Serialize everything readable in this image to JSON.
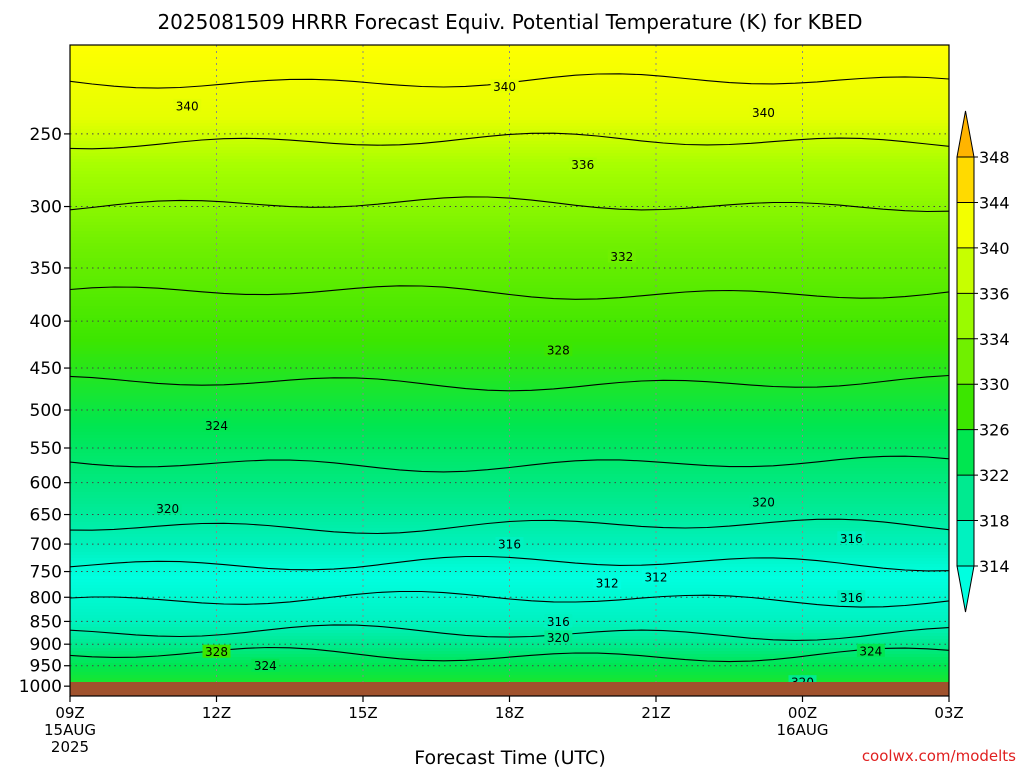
{
  "chart_data": {
    "type": "heatmap",
    "title": "2025081509 HRRR Forecast Equiv. Potential Temperature (K) for KBED",
    "xlabel": "Forecast Time (UTC)",
    "ylabel": "",
    "credit": "coolwx.com/modelts",
    "x_ticks": [
      {
        "hour": 0,
        "label": "09Z",
        "sub1": "15AUG",
        "sub2": "2025"
      },
      {
        "hour": 3,
        "label": "12Z",
        "sub1": "",
        "sub2": ""
      },
      {
        "hour": 6,
        "label": "15Z",
        "sub1": "",
        "sub2": ""
      },
      {
        "hour": 9,
        "label": "18Z",
        "sub1": "",
        "sub2": ""
      },
      {
        "hour": 12,
        "label": "21Z",
        "sub1": "",
        "sub2": ""
      },
      {
        "hour": 15,
        "label": "00Z",
        "sub1": "16AUG",
        "sub2": ""
      },
      {
        "hour": 18,
        "label": "03Z",
        "sub1": "",
        "sub2": ""
      }
    ],
    "y_ticks": [
      250,
      300,
      350,
      400,
      450,
      500,
      550,
      600,
      650,
      700,
      750,
      800,
      850,
      900,
      950,
      1000
    ],
    "y_axis": {
      "unit": "hPa",
      "scale": "log",
      "top": 200,
      "bottom": 1025
    },
    "colorbar": {
      "labels": [
        348,
        344,
        340,
        336,
        334,
        330,
        326,
        322,
        318,
        314
      ],
      "extend": "both"
    },
    "color_ramp": [
      {
        "v": 312,
        "c": "#00ffe0"
      },
      {
        "v": 316,
        "c": "#00f2c0"
      },
      {
        "v": 320,
        "c": "#00ea90"
      },
      {
        "v": 324,
        "c": "#00e650"
      },
      {
        "v": 328,
        "c": "#3ce600"
      },
      {
        "v": 332,
        "c": "#70f000"
      },
      {
        "v": 336,
        "c": "#a8ff00"
      },
      {
        "v": 340,
        "c": "#e6ff00"
      },
      {
        "v": 344,
        "c": "#ffff00"
      },
      {
        "v": 348,
        "c": "#ffb400"
      }
    ],
    "ground_color": "#a0522d",
    "contour_interval": 2,
    "profile": [
      {
        "p": 200,
        "theta_e": 344
      },
      {
        "p": 240,
        "theta_e": 340
      },
      {
        "p": 270,
        "theta_e": 336
      },
      {
        "p": 330,
        "theta_e": 332
      },
      {
        "p": 420,
        "theta_e": 328
      },
      {
        "p": 520,
        "theta_e": 324
      },
      {
        "p": 630,
        "theta_e": 320
      },
      {
        "p": 710,
        "theta_e": 316
      },
      {
        "p": 760,
        "theta_e": 312
      },
      {
        "p": 850,
        "theta_e": 316
      },
      {
        "p": 900,
        "theta_e": 320
      },
      {
        "p": 950,
        "theta_e": 324
      },
      {
        "p": 1000,
        "theta_e": 326
      }
    ],
    "contour_labels": [
      {
        "hour": 2.4,
        "p": 233,
        "text": "340"
      },
      {
        "hour": 8.9,
        "p": 222,
        "text": "340"
      },
      {
        "hour": 14.2,
        "p": 237,
        "text": "340"
      },
      {
        "hour": 10.5,
        "p": 270,
        "text": "336"
      },
      {
        "hour": 11.3,
        "p": 340,
        "text": "332"
      },
      {
        "hour": 10.0,
        "p": 430,
        "text": "328"
      },
      {
        "hour": 3.0,
        "p": 520,
        "text": "324"
      },
      {
        "hour": 2.0,
        "p": 640,
        "text": "320"
      },
      {
        "hour": 14.2,
        "p": 630,
        "text": "320"
      },
      {
        "hour": 9.0,
        "p": 700,
        "text": "316"
      },
      {
        "hour": 16.0,
        "p": 690,
        "text": "316"
      },
      {
        "hour": 12.0,
        "p": 760,
        "text": "312"
      },
      {
        "hour": 11.0,
        "p": 772,
        "text": "312"
      },
      {
        "hour": 16.0,
        "p": 800,
        "text": "316"
      },
      {
        "hour": 10.0,
        "p": 850,
        "text": "316"
      },
      {
        "hour": 10.0,
        "p": 885,
        "text": "320"
      },
      {
        "hour": 3.0,
        "p": 917,
        "text": "328"
      },
      {
        "hour": 4.0,
        "p": 950,
        "text": "324"
      },
      {
        "hour": 16.4,
        "p": 915,
        "text": "324"
      },
      {
        "hour": 15.0,
        "p": 990,
        "text": "320"
      }
    ]
  }
}
